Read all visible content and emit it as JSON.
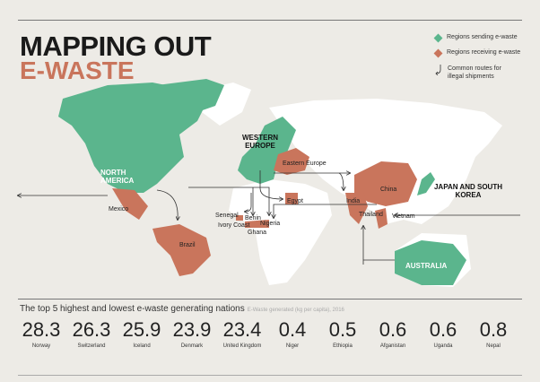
{
  "title": {
    "line1": "MAPPING OUT",
    "line2": "E-WASTE"
  },
  "legend": [
    {
      "label": "Regions sending e-waste",
      "icon": "green-diamond-icon",
      "color": "#5bb58d"
    },
    {
      "label": "Regions receiving e-waste",
      "icon": "orange-diamond-icon",
      "color": "#c9755c"
    },
    {
      "label": "Common routes for illegal shipments",
      "icon": "curved-arrow-icon"
    }
  ],
  "map_labels": {
    "north_america": "NORTH AMERICA",
    "western_europe": "WESTERN EUROPE",
    "japan_korea": "JAPAN AND SOUTH KOREA",
    "australia": "AUSTRALIA",
    "mexico": "Mexico",
    "brazil": "Brazil",
    "eastern_europe": "Eastern Europe",
    "egypt": "Egypt",
    "china": "China",
    "india": "India",
    "thailand": "Thailand",
    "vietnam": "Vietnam",
    "senegal": "Senegal",
    "benin": "Benin",
    "ivory_coast": "Ivory Coast",
    "nigeria": "Nigeria",
    "ghana": "Ghana"
  },
  "stats": {
    "title": "The top 5 highest and lowest e-waste generating nations",
    "subtitle": "E-Waste generated (kg per capita), 2016",
    "items": [
      {
        "value": "28.3",
        "country": "Norway"
      },
      {
        "value": "26.3",
        "country": "Switzerland"
      },
      {
        "value": "25.9",
        "country": "Iceland"
      },
      {
        "value": "23.9",
        "country": "Denmark"
      },
      {
        "value": "23.4",
        "country": "United Kingdom"
      },
      {
        "value": "0.4",
        "country": "Niger"
      },
      {
        "value": "0.5",
        "country": "Ethiopia"
      },
      {
        "value": "0.6",
        "country": "Afganistan"
      },
      {
        "value": "0.6",
        "country": "Uganda"
      },
      {
        "value": "0.8",
        "country": "Nepal"
      }
    ]
  }
}
